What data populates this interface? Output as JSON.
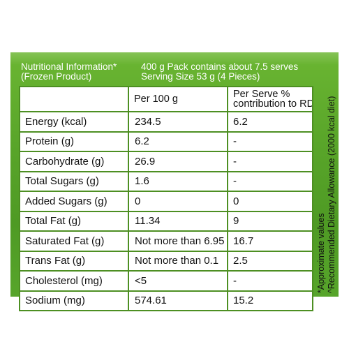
{
  "header": {
    "left_line1": "Nutritional Information*",
    "left_line2": "(Frozen Product)",
    "right_line1": "400 g Pack contains about 7.5 serves",
    "right_line2": "Serving Size 53 g (4 Pieces)"
  },
  "table": {
    "columns": [
      "",
      "Per 100 g",
      "Per Serve %",
      "contribution to RDA"
    ],
    "rows": [
      {
        "nutrient": "Energy (kcal)",
        "per100": "234.5",
        "rda": "6.2"
      },
      {
        "nutrient": "Protein (g)",
        "per100": "6.2",
        "rda": "-"
      },
      {
        "nutrient": "Carbohydrate (g)",
        "per100": "26.9",
        "rda": "-"
      },
      {
        "nutrient": "Total Sugars (g)",
        "per100": "1.6",
        "rda": "-"
      },
      {
        "nutrient": "Added Sugars (g)",
        "per100": "0",
        "rda": "0"
      },
      {
        "nutrient": "Total Fat (g)",
        "per100": "11.34",
        "rda": "9"
      },
      {
        "nutrient": "Saturated Fat (g)",
        "per100": "Not more than 6.95",
        "rda": "16.7"
      },
      {
        "nutrient": "Trans Fat (g)",
        "per100": "Not more than 0.1",
        "rda": "2.5"
      },
      {
        "nutrient": "Cholesterol (mg)",
        "per100": "<5",
        "rda": "-"
      },
      {
        "nutrient": "Sodium (mg)",
        "per100": "574.61",
        "rda": "15.2"
      }
    ]
  },
  "footnotes": {
    "line1": "*Approximate values",
    "line2": "^Recommended Dietary Allowance (2000 kcal diet)"
  },
  "colors": {
    "panel_green": "#5aa62a",
    "border_green": "#4d8f22"
  }
}
